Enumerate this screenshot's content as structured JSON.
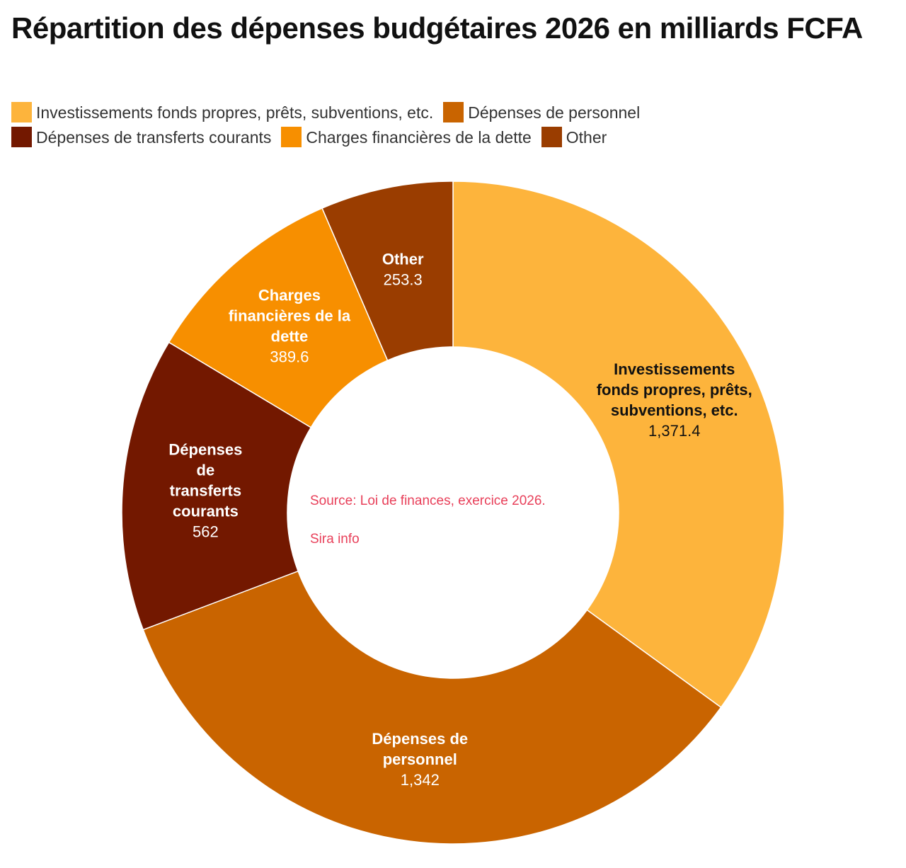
{
  "chart_data": {
    "type": "pie",
    "variant": "donut",
    "title": "Répartition des dépenses budgétaires 2026 en milliards FCFA",
    "legend_position": "top",
    "slices": [
      {
        "name": "Investissements fonds propres, prêts, subventions, etc.",
        "label_lines": [
          "Investissements",
          "fonds propres, prêts,",
          "subventions, etc."
        ],
        "value": 1371.4,
        "value_label": "1,371.4",
        "color": "#fdb43c",
        "text_color": "#111111"
      },
      {
        "name": "Dépenses de personnel",
        "label_lines": [
          "Dépenses de",
          "personnel"
        ],
        "value": 1342,
        "value_label": "1,342",
        "color": "#c96400",
        "text_color": "#ffffff"
      },
      {
        "name": "Dépenses de transferts courants",
        "label_lines": [
          "Dépenses",
          "de",
          "transferts",
          "courants"
        ],
        "value": 562,
        "value_label": "562",
        "color": "#731800",
        "text_color": "#ffffff"
      },
      {
        "name": "Charges financières de la dette",
        "label_lines": [
          "Charges",
          "financières de la",
          "dette"
        ],
        "value": 389.6,
        "value_label": "389.6",
        "color": "#f78f00",
        "text_color": "#ffffff"
      },
      {
        "name": "Other",
        "label_lines": [
          "Other"
        ],
        "value": 253.3,
        "value_label": "253.3",
        "color": "#9a3d00",
        "text_color": "#ffffff"
      }
    ],
    "notes": [
      "Source: Loi de finances, exercice 2026.",
      "Sira info"
    ]
  }
}
